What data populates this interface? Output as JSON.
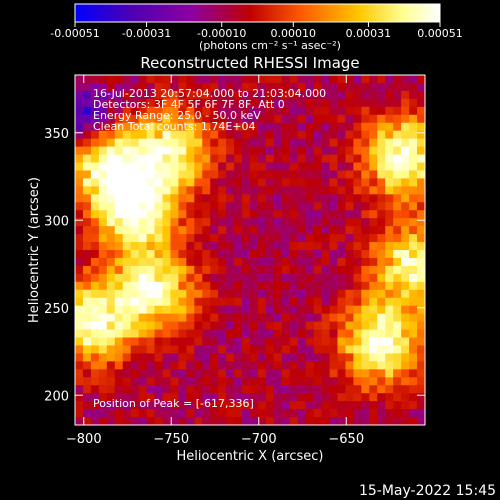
{
  "colorbar": {
    "tick_labels": [
      "-0.00051",
      "-0.00031",
      "-0.00010",
      "0.00010",
      "0.00031",
      "0.00051"
    ],
    "tick_values": [
      -0.00051,
      -0.00031,
      -0.0001,
      0.0001,
      0.00031,
      0.00051
    ],
    "range": [
      -0.00051,
      0.00051
    ],
    "units": "(photons cm⁻² s⁻¹ asec⁻²)",
    "colormap": [
      "#0000ff",
      "#4b00b4",
      "#8c00a0",
      "#c00000",
      "#ff5a00",
      "#ffc800",
      "#ffff96",
      "#ffffff"
    ]
  },
  "chart_data": {
    "type": "heatmap",
    "title": "Reconstructed RHESSI Image",
    "xlabel": "Heliocentric X (arcsec)",
    "ylabel": "Heliocentric Y (arcsec)",
    "xlim": [
      -805,
      -605
    ],
    "ylim": [
      183,
      383
    ],
    "x_ticks": [
      -800,
      -750,
      -700,
      -650
    ],
    "x_tick_labels": [
      "−800",
      "−750",
      "−700",
      "−650"
    ],
    "y_ticks": [
      200,
      250,
      300,
      350
    ],
    "y_tick_labels": [
      "200",
      "250",
      "300",
      "350"
    ],
    "grid": false,
    "annotations": [
      "16-Jul-2013 20:57:04.000 to 21:03:04.000",
      "Detectors: 3F 4F 5F 6F 7F 8F, Att 0",
      "Energy Range: 25.0 - 50.0 keV",
      "Clean    Total counts: 1.74E+04"
    ],
    "peak_label": "Position of Peak = [-617,336]",
    "peak_position": [
      -617,
      336
    ],
    "bright_regions": [
      {
        "x": -795,
        "y": 242,
        "intensity": 0.00048
      },
      {
        "x": -785,
        "y": 330,
        "intensity": 0.00046
      },
      {
        "x": -770,
        "y": 305,
        "intensity": 0.0005
      },
      {
        "x": -760,
        "y": 260,
        "intensity": 0.00045
      },
      {
        "x": -750,
        "y": 340,
        "intensity": 0.0004
      },
      {
        "x": -630,
        "y": 230,
        "intensity": 0.00049
      },
      {
        "x": -617,
        "y": 336,
        "intensity": 0.00051
      },
      {
        "x": -612,
        "y": 275,
        "intensity": 0.00044
      }
    ]
  },
  "footer": {
    "timestamp": "15-May-2022 15:45"
  }
}
